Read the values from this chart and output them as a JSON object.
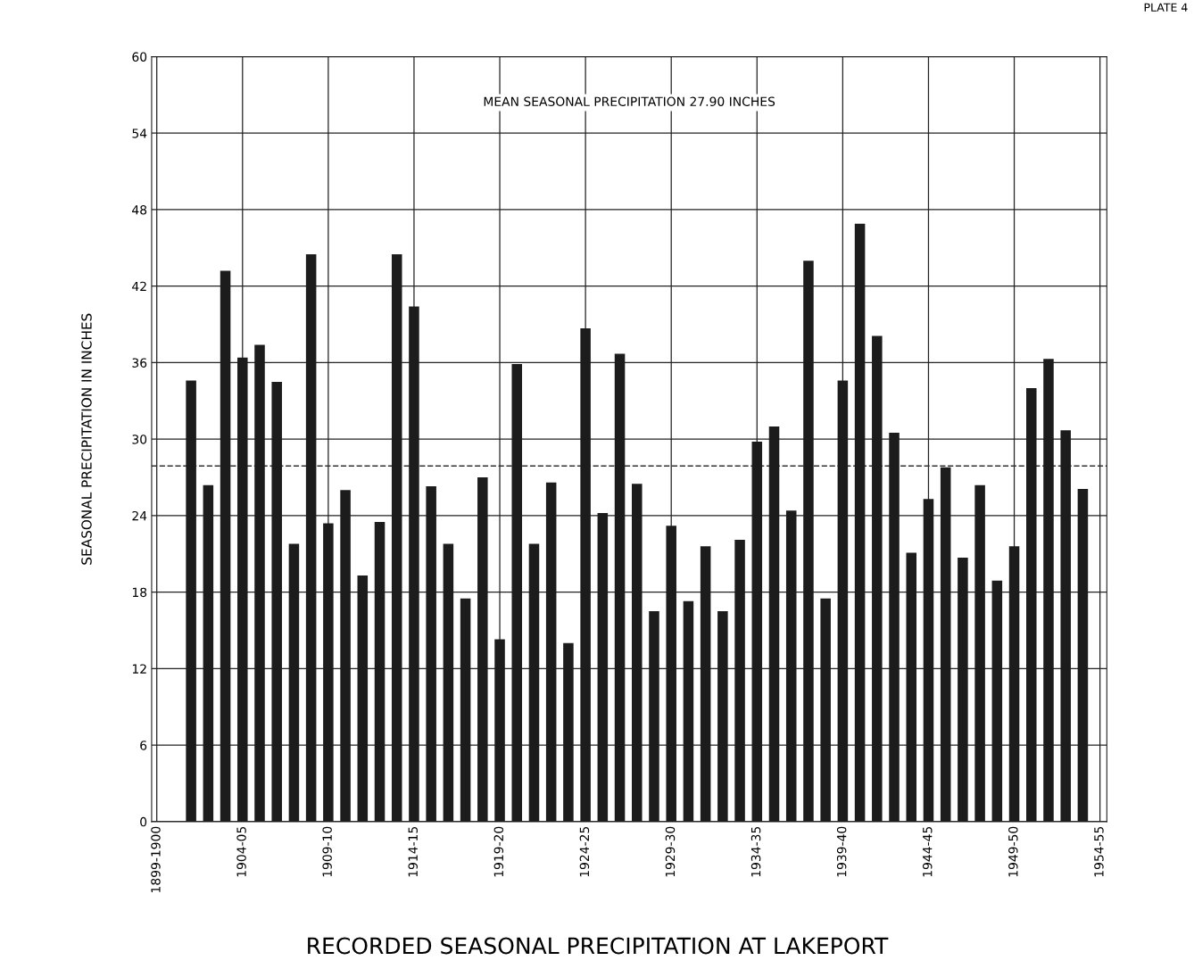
{
  "chart_data": {
    "type": "bar",
    "title": "RECORDED SEASONAL PRECIPITATION AT LAKEPORT",
    "ylabel": "SEASONAL PRECIPITATION IN INCHES",
    "categories": [
      "1899-1900",
      null,
      null,
      null,
      null,
      "1904-05",
      null,
      null,
      null,
      null,
      "1909-10",
      null,
      null,
      null,
      null,
      "1914-15",
      null,
      null,
      null,
      null,
      "1919-20",
      null,
      null,
      null,
      null,
      "1924-25",
      null,
      null,
      null,
      null,
      "1929-30",
      null,
      null,
      null,
      null,
      "1934-35",
      null,
      null,
      null,
      null,
      "1939-40",
      null,
      null,
      null,
      null,
      "1944-45",
      null,
      null,
      null,
      null,
      "1949-50",
      null,
      null,
      null,
      null,
      "1954-55"
    ],
    "values": [
      null,
      null,
      34.6,
      26.4,
      43.2,
      36.4,
      37.4,
      34.5,
      21.8,
      44.5,
      23.4,
      26.0,
      19.3,
      23.5,
      44.5,
      40.4,
      26.3,
      21.8,
      17.5,
      27.0,
      14.3,
      35.9,
      21.8,
      26.6,
      14.0,
      38.7,
      24.2,
      36.7,
      26.5,
      16.5,
      23.2,
      17.3,
      21.6,
      16.5,
      22.1,
      29.8,
      31.0,
      24.4,
      44.0,
      17.5,
      34.6,
      46.9,
      38.1,
      30.5,
      21.1,
      25.3,
      27.8,
      20.7,
      26.4,
      18.9,
      21.6,
      34.0,
      36.3,
      30.7,
      26.1,
      null
    ],
    "color": "#1c1c1c",
    "ylim": [
      0,
      60
    ],
    "yticks": [
      0,
      6,
      12,
      18,
      24,
      30,
      36,
      42,
      48,
      54,
      60
    ],
    "grid": true,
    "ref_lines": [
      {
        "axis": "y",
        "value": 27.9,
        "label": null,
        "color": "#333333",
        "line_style": "dashed"
      }
    ],
    "annotations": [
      "MEAN SEASONAL PRECIPITATION 27.90 INCHES",
      "PLATE 4"
    ]
  }
}
